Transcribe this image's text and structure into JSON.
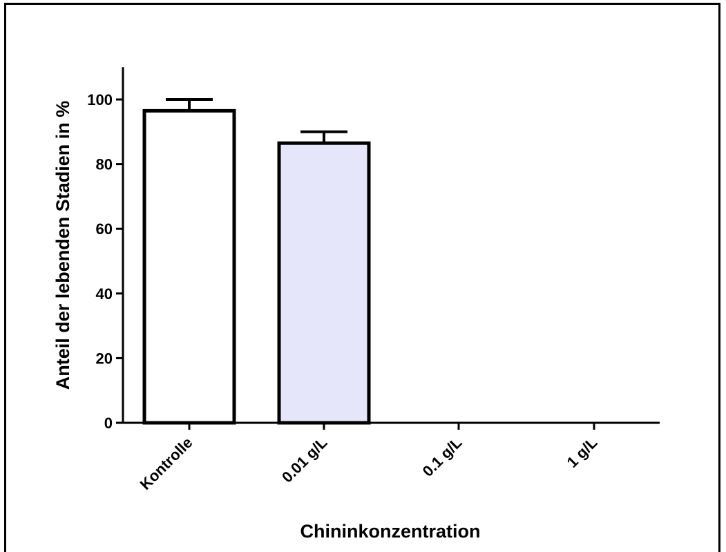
{
  "chart_data": {
    "type": "bar",
    "title": "",
    "xlabel": "Chininkonzentration",
    "ylabel": "Anteil der lebenden Stadien in %",
    "categories": [
      "Kontrolle",
      "0.01 g/L",
      "0.1 g/L",
      "1 g/L"
    ],
    "values": [
      96.5,
      86.5,
      0,
      0
    ],
    "errors": [
      3.5,
      3.5,
      0,
      0
    ],
    "bar_colors": [
      "#ffffff",
      "#e6e6fa",
      "#ffffff",
      "#ffffff"
    ],
    "ylim": [
      0,
      110
    ],
    "yticks": [
      0,
      20,
      40,
      60,
      80,
      100
    ],
    "grid": false,
    "legend": "none"
  }
}
